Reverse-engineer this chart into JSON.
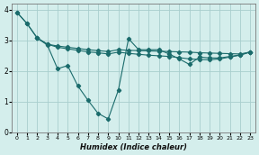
{
  "bg_color": "#d4eeec",
  "grid_color": "#a8cece",
  "line_color": "#1a6b6b",
  "xlabel": "Humidex (Indice chaleur)",
  "xlim": [
    -0.5,
    23.5
  ],
  "ylim": [
    0,
    4.2
  ],
  "yticks": [
    0,
    1,
    2,
    3,
    4
  ],
  "xticks": [
    0,
    1,
    2,
    3,
    4,
    5,
    6,
    7,
    8,
    9,
    10,
    11,
    12,
    13,
    14,
    15,
    16,
    17,
    18,
    19,
    20,
    21,
    22,
    23
  ],
  "line1_x": [
    0,
    1,
    2,
    3,
    4,
    5,
    6,
    7,
    8,
    9,
    10,
    11,
    12,
    13,
    14,
    15,
    16,
    17,
    18,
    19,
    20,
    21,
    22,
    23
  ],
  "line1_y": [
    3.92,
    3.55,
    3.08,
    2.88,
    2.82,
    2.78,
    2.74,
    2.7,
    2.67,
    2.64,
    2.7,
    2.68,
    2.67,
    2.66,
    2.65,
    2.64,
    2.63,
    2.62,
    2.6,
    2.59,
    2.58,
    2.57,
    2.56,
    2.62
  ],
  "line2_x": [
    2,
    3,
    4,
    5,
    6,
    7,
    8,
    9,
    10,
    11,
    12,
    13,
    14,
    15,
    16,
    17,
    18,
    19,
    20,
    21,
    22,
    23
  ],
  "line2_y": [
    3.08,
    2.85,
    2.08,
    2.18,
    1.52,
    1.05,
    0.62,
    0.44,
    1.38,
    3.06,
    2.7,
    2.7,
    2.7,
    2.56,
    2.4,
    2.22,
    2.46,
    2.43,
    2.43,
    2.48,
    2.53,
    2.63
  ],
  "line3_x": [
    0,
    1,
    2,
    3,
    4,
    5,
    6,
    7,
    8,
    9,
    10,
    11,
    12,
    13,
    14,
    15,
    16,
    17,
    18,
    19,
    20,
    21,
    22,
    23
  ],
  "line3_y": [
    3.92,
    3.55,
    3.08,
    2.88,
    2.78,
    2.73,
    2.68,
    2.63,
    2.6,
    2.56,
    2.62,
    2.58,
    2.55,
    2.52,
    2.5,
    2.48,
    2.44,
    2.4,
    2.38,
    2.37,
    2.4,
    2.46,
    2.52,
    2.62
  ]
}
